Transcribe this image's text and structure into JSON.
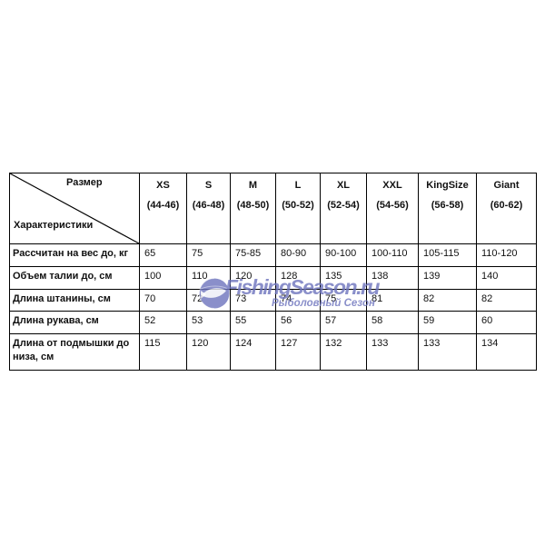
{
  "colors": {
    "watermark": "#6d74bd",
    "table_border": "#000000",
    "background": "#ffffff",
    "text": "#111111"
  },
  "watermark": {
    "brand": "FishingSeason.ru",
    "tagline": "Рыболовный Сезон",
    "globe_icon": "globe-with-fish"
  },
  "table": {
    "corner": {
      "top_right_label": "Размер",
      "bottom_left_label": "Характеристики"
    },
    "columns": [
      {
        "size": "XS",
        "range": "(44-46)"
      },
      {
        "size": "S",
        "range": "(46-48)"
      },
      {
        "size": "M",
        "range": "(48-50)"
      },
      {
        "size": "L",
        "range": "(50-52)"
      },
      {
        "size": "XL",
        "range": "(52-54)"
      },
      {
        "size": "XXL",
        "range": "(54-56)"
      },
      {
        "size": "KingSize",
        "range": "(56-58)"
      },
      {
        "size": "Giant",
        "range": "(60-62)"
      }
    ],
    "rows": [
      {
        "label": "Рассчитан на вес до, кг",
        "values": [
          "65",
          "75",
          "75-85",
          "80-90",
          "90-100",
          "100-110",
          "105-115",
          "110-120"
        ]
      },
      {
        "label": "Объем талии до, см",
        "values": [
          "100",
          "110",
          "120",
          "128",
          "135",
          "138",
          "139",
          "140"
        ]
      },
      {
        "label": "Длина штанины, см",
        "values": [
          "70",
          "72",
          "73",
          "74",
          "75",
          "81",
          "82",
          "82"
        ]
      },
      {
        "label": "Длина рукава, см",
        "values": [
          "52",
          "53",
          "55",
          "56",
          "57",
          "58",
          "59",
          "60"
        ]
      },
      {
        "label": "Длина от подмышки до низа, см",
        "values": [
          "115",
          "120",
          "124",
          "127",
          "132",
          "133",
          "133",
          "134"
        ]
      }
    ]
  }
}
